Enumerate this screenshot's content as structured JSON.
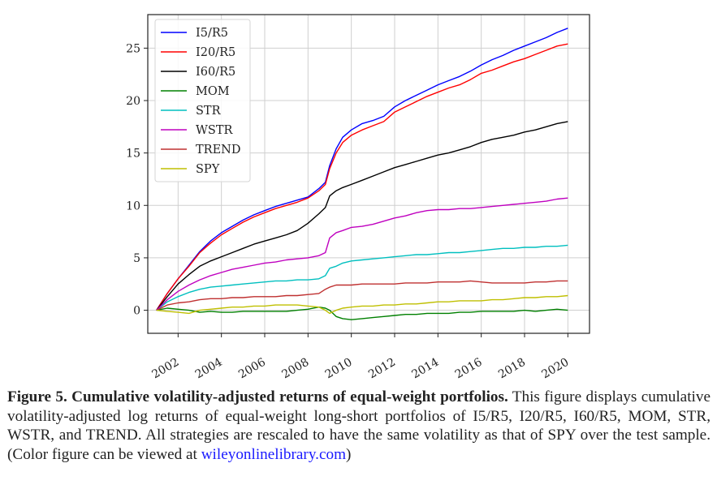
{
  "chart_data": {
    "type": "line",
    "title": "",
    "xlabel": "",
    "ylabel": "",
    "xlim": [
      2000.6,
      2021.0
    ],
    "ylim": [
      -2.2,
      28.2
    ],
    "grid": true,
    "legend_position": "top-left",
    "x_ticks": [
      2002,
      2004,
      2006,
      2008,
      2010,
      2012,
      2014,
      2016,
      2018,
      2020
    ],
    "x_tick_labels": [
      "2002",
      "2004",
      "2006",
      "2008",
      "2010",
      "2012",
      "2014",
      "2016",
      "2018",
      "2020"
    ],
    "y_ticks": [
      0,
      5,
      10,
      15,
      20,
      25
    ],
    "y_tick_labels": [
      "0",
      "5",
      "10",
      "15",
      "20",
      "25"
    ],
    "x": [
      2001.0,
      2001.5,
      2002.0,
      2002.5,
      2003.0,
      2003.5,
      2004.0,
      2004.5,
      2005.0,
      2005.5,
      2006.0,
      2006.5,
      2007.0,
      2007.5,
      2008.0,
      2008.5,
      2008.8,
      2009.0,
      2009.3,
      2009.6,
      2010.0,
      2010.5,
      2011.0,
      2011.5,
      2012.0,
      2012.5,
      2013.0,
      2013.5,
      2014.0,
      2014.5,
      2015.0,
      2015.5,
      2016.0,
      2016.5,
      2017.0,
      2017.5,
      2018.0,
      2018.5,
      2019.0,
      2019.5,
      2020.0
    ],
    "series": [
      {
        "name": "I5/R5",
        "color": "#0000ff",
        "values": [
          0.0,
          1.6,
          3.0,
          4.3,
          5.6,
          6.6,
          7.4,
          8.0,
          8.6,
          9.1,
          9.5,
          9.9,
          10.2,
          10.5,
          10.8,
          11.6,
          12.2,
          13.8,
          15.4,
          16.5,
          17.2,
          17.8,
          18.1,
          18.5,
          19.4,
          20.0,
          20.5,
          21.0,
          21.5,
          21.9,
          22.3,
          22.8,
          23.4,
          23.9,
          24.3,
          24.8,
          25.2,
          25.6,
          26.0,
          26.5,
          26.9
        ]
      },
      {
        "name": "I20/R5",
        "color": "#ff0000",
        "values": [
          0.0,
          1.6,
          3.0,
          4.2,
          5.5,
          6.4,
          7.2,
          7.8,
          8.4,
          8.9,
          9.3,
          9.7,
          10.0,
          10.3,
          10.7,
          11.4,
          12.0,
          13.5,
          15.0,
          16.0,
          16.7,
          17.2,
          17.6,
          18.0,
          18.9,
          19.4,
          19.9,
          20.4,
          20.8,
          21.2,
          21.5,
          22.0,
          22.6,
          22.9,
          23.3,
          23.7,
          24.0,
          24.4,
          24.8,
          25.2,
          25.4
        ]
      },
      {
        "name": "I60/R5",
        "color": "#000000",
        "values": [
          0.0,
          1.3,
          2.5,
          3.4,
          4.2,
          4.7,
          5.1,
          5.5,
          5.9,
          6.3,
          6.6,
          6.9,
          7.2,
          7.6,
          8.3,
          9.2,
          9.8,
          10.9,
          11.4,
          11.7,
          12.0,
          12.4,
          12.8,
          13.2,
          13.6,
          13.9,
          14.2,
          14.5,
          14.8,
          15.0,
          15.3,
          15.6,
          16.0,
          16.3,
          16.5,
          16.7,
          17.0,
          17.2,
          17.5,
          17.8,
          18.0
        ]
      },
      {
        "name": "MOM",
        "color": "#008000",
        "values": [
          0.0,
          0.2,
          0.1,
          0.0,
          -0.2,
          -0.1,
          -0.2,
          -0.2,
          -0.1,
          -0.1,
          -0.1,
          -0.1,
          -0.1,
          0.0,
          0.1,
          0.3,
          0.2,
          0.0,
          -0.6,
          -0.8,
          -0.9,
          -0.8,
          -0.7,
          -0.6,
          -0.5,
          -0.4,
          -0.4,
          -0.3,
          -0.3,
          -0.3,
          -0.2,
          -0.2,
          -0.1,
          -0.1,
          -0.1,
          -0.1,
          0.0,
          -0.1,
          0.0,
          0.1,
          0.0
        ]
      },
      {
        "name": "STR",
        "color": "#00bfbf",
        "values": [
          0.0,
          0.8,
          1.3,
          1.7,
          2.0,
          2.2,
          2.3,
          2.4,
          2.5,
          2.6,
          2.7,
          2.8,
          2.8,
          2.9,
          2.9,
          3.0,
          3.3,
          4.0,
          4.2,
          4.5,
          4.7,
          4.8,
          4.9,
          5.0,
          5.1,
          5.2,
          5.3,
          5.3,
          5.4,
          5.5,
          5.5,
          5.6,
          5.7,
          5.8,
          5.9,
          5.9,
          6.0,
          6.0,
          6.1,
          6.1,
          6.2
        ]
      },
      {
        "name": "WSTR",
        "color": "#bf00bf",
        "values": [
          0.0,
          1.0,
          1.8,
          2.4,
          2.9,
          3.3,
          3.6,
          3.9,
          4.1,
          4.3,
          4.5,
          4.6,
          4.8,
          4.9,
          5.0,
          5.2,
          5.5,
          6.9,
          7.4,
          7.6,
          7.9,
          8.0,
          8.2,
          8.5,
          8.8,
          9.0,
          9.3,
          9.5,
          9.6,
          9.6,
          9.7,
          9.7,
          9.8,
          9.9,
          10.0,
          10.1,
          10.2,
          10.3,
          10.4,
          10.6,
          10.7
        ]
      },
      {
        "name": "TREND",
        "color": "#bf3030",
        "values": [
          0.0,
          0.5,
          0.7,
          0.8,
          1.0,
          1.1,
          1.1,
          1.2,
          1.2,
          1.3,
          1.3,
          1.3,
          1.4,
          1.4,
          1.5,
          1.6,
          2.0,
          2.2,
          2.4,
          2.4,
          2.4,
          2.5,
          2.5,
          2.5,
          2.5,
          2.6,
          2.6,
          2.6,
          2.7,
          2.7,
          2.7,
          2.8,
          2.7,
          2.6,
          2.6,
          2.6,
          2.6,
          2.7,
          2.7,
          2.8,
          2.8
        ]
      },
      {
        "name": "SPY",
        "color": "#bfbf00",
        "values": [
          0.0,
          -0.1,
          -0.2,
          -0.3,
          0.0,
          0.1,
          0.2,
          0.3,
          0.3,
          0.4,
          0.4,
          0.5,
          0.5,
          0.5,
          0.4,
          0.3,
          0.0,
          -0.3,
          0.0,
          0.2,
          0.3,
          0.4,
          0.4,
          0.5,
          0.5,
          0.6,
          0.6,
          0.7,
          0.8,
          0.8,
          0.9,
          0.9,
          0.9,
          1.0,
          1.0,
          1.1,
          1.2,
          1.2,
          1.3,
          1.3,
          1.4
        ]
      }
    ]
  },
  "caption": {
    "label": "Figure 5. Cumulative volatility-adjusted returns of equal-weight portfolios.",
    "text": " This figure displays cumulative volatility-adjusted log returns of equal-weight long-short portfolios of I5/R5, I20/R5, I60/R5, MOM, STR, WSTR, and TREND. All strategies are rescaled to have the same volatility as that of SPY over the test sample. (Color figure can be viewed at ",
    "link": "wileyonlinelibrary.com",
    "tail": ")"
  }
}
